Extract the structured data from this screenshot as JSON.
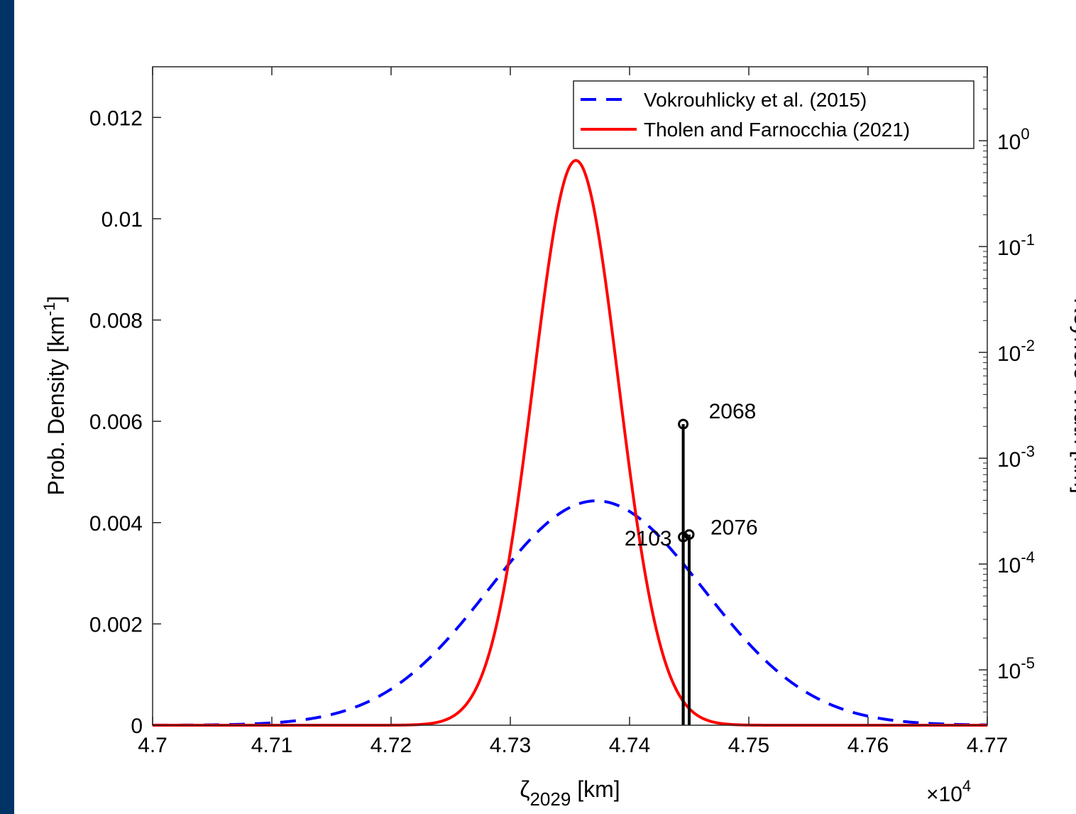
{
  "colors": {
    "background_border": "#003366",
    "series_vokrouhlicky": "#0000ff",
    "series_tholen": "#ff0000",
    "keyholes": "#000000"
  },
  "chart_data": {
    "type": "line",
    "xlabel_symbol": "ζ",
    "xlabel_sub": "2029",
    "xlabel_unit": " [km]",
    "xlim": [
      47000,
      47700
    ],
    "x_multiplier_prefix": "×10",
    "x_multiplier_exp": "4",
    "x_ticks": [
      "4.7",
      "4.71",
      "4.72",
      "4.73",
      "4.74",
      "4.75",
      "4.76",
      "4.77"
    ],
    "x_tick_values": [
      47000,
      47100,
      47200,
      47300,
      47400,
      47500,
      47600,
      47700
    ],
    "ylabel_left_main": "Prob. Density [km",
    "ylabel_left_exp": "-1",
    "ylabel_left_close": "]",
    "ylim_left": [
      0,
      0.013
    ],
    "y_left_ticks": [
      "0",
      "0.002",
      "0.004",
      "0.006",
      "0.008",
      "0.01",
      "0.012"
    ],
    "y_left_tick_values": [
      0,
      0.002,
      0.004,
      0.006,
      0.008,
      0.01,
      0.012
    ],
    "ylabel_right": "Keyhole Width [km]",
    "y_right_scale": "log",
    "ylim_right": [
      3e-06,
      5
    ],
    "y_right_ticks": [
      {
        "base": "10",
        "exp": "0",
        "value": 1
      },
      {
        "base": "10",
        "exp": "-1",
        "value": 0.1
      },
      {
        "base": "10",
        "exp": "-2",
        "value": 0.01
      },
      {
        "base": "10",
        "exp": "-3",
        "value": 0.001
      },
      {
        "base": "10",
        "exp": "-4",
        "value": 0.0001
      },
      {
        "base": "10",
        "exp": "-5",
        "value": 1e-05
      }
    ],
    "legend_position": "top-right",
    "series": [
      {
        "name": "Vokrouhlicky et al. (2015)",
        "style": "dashed",
        "color": "#0000ff",
        "mean": 47372,
        "sigma": 90,
        "peak": 0.00443
      },
      {
        "name": "Tholen and Farnocchia (2021)",
        "style": "solid",
        "color": "#ff0000",
        "mean": 47355,
        "sigma": 35.8,
        "peak": 0.01115
      }
    ],
    "keyholes": [
      {
        "label": "2068",
        "x": 47445,
        "width_km": 0.0021
      },
      {
        "label": "2103",
        "x": 47445,
        "width_km": 0.00018
      },
      {
        "label": "2076",
        "x": 47450,
        "width_km": 0.00019
      }
    ]
  }
}
